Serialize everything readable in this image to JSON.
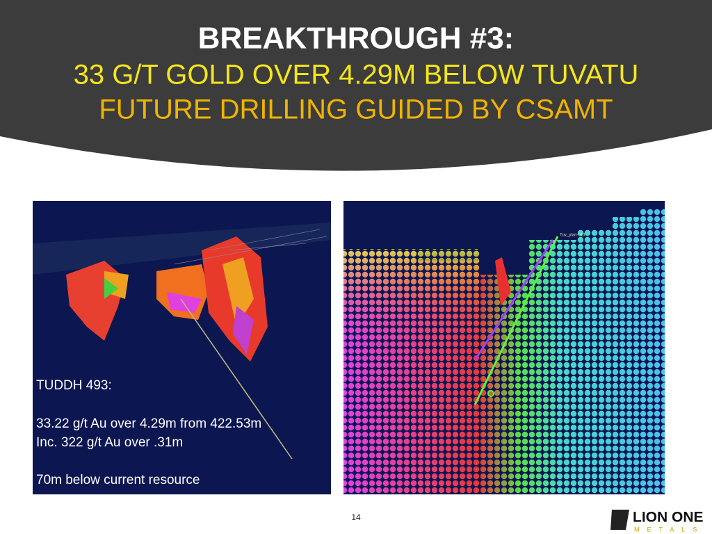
{
  "header": {
    "title": "BREAKTHROUGH #3:",
    "subtitle": "33 G/T GOLD OVER 4.29M BELOW TUVATU",
    "tagline": "FUTURE DRILLING GUIDED BY CSAMT"
  },
  "left_panel": {
    "hole": "TUDDH 493:",
    "lines": [
      "33.22 g/t Au over 4.29m from 422.53m",
      "Inc. 322 g/t Au over .31m",
      "70m below current resource"
    ]
  },
  "right_panel": {
    "label": "Tuv_plan-013"
  },
  "footer": {
    "page": "14",
    "logo": {
      "name": "LION ONE",
      "sub": "METALS"
    }
  }
}
